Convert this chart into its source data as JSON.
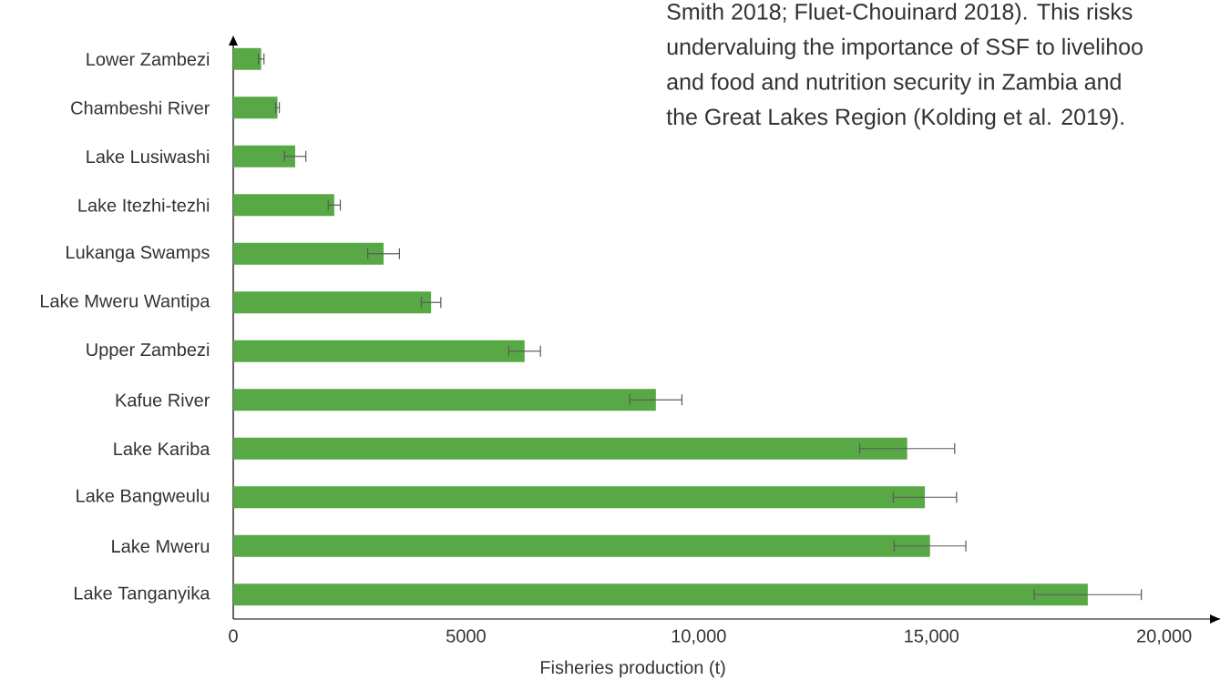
{
  "chart_data": {
    "type": "bar",
    "orientation": "horizontal",
    "categories": [
      "Lower Zambezi",
      "Chambeshi River",
      "Lake Lusiwashi",
      "Lake Itezhi-tezhi",
      "Lukanga Swamps",
      "Lake Mweru Wantipa",
      "Upper Zambezi",
      "Kafue River",
      "Lake Kariba",
      "Lake Bangweulu",
      "Lake Mweru",
      "Lake Tanganyika"
    ],
    "values": [
      600,
      950,
      1330,
      2170,
      3230,
      4250,
      6260,
      9080,
      14480,
      14860,
      14970,
      18360
    ],
    "errors": [
      60,
      40,
      230,
      130,
      340,
      210,
      340,
      560,
      1020,
      680,
      770,
      1150
    ],
    "color": "#58a946",
    "xlim": [
      0,
      21200
    ],
    "xticks": [
      0,
      5000,
      {
        "value": 10000,
        "label": "10,000"
      },
      {
        "value": 15000,
        "label": "15,000"
      },
      {
        "value": 20000,
        "label": "20,000"
      }
    ],
    "xlabel": "Fisheries production (t)",
    "annotations": [
      "Smith 2018; Fluet-Chouinard 2018). This risks",
      "undervaluing the importance of SSF to livelihoo",
      "and food and nutrition security in Zambia and",
      "the Great Lakes Region (Kolding et al. 2019)."
    ]
  }
}
